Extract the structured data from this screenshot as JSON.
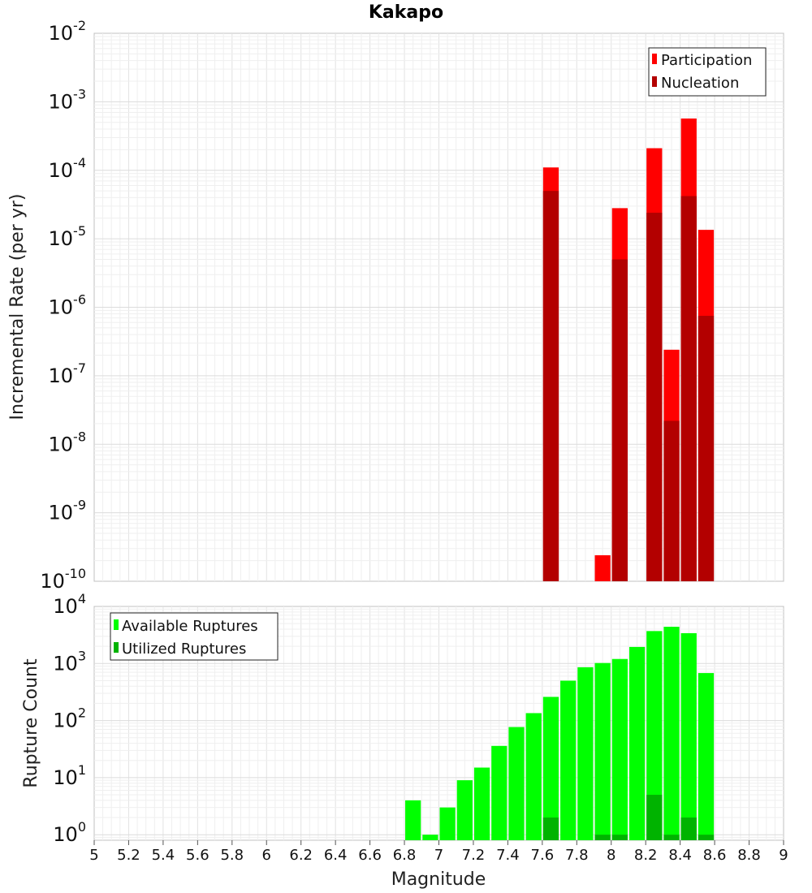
{
  "chart_data": [
    {
      "type": "bar",
      "title": "Kakapo",
      "ylabel": "Incremental Rate (per yr)",
      "xlabel": "",
      "xlim": [
        5,
        9
      ],
      "ylim": [
        1e-10,
        0.01
      ],
      "yscale": "log",
      "grid": true,
      "legend_placement": "top-right",
      "y_tick_labels": [
        {
          "base": "10",
          "exp": "-2"
        },
        {
          "base": "10",
          "exp": "-3"
        },
        {
          "base": "10",
          "exp": "-4"
        },
        {
          "base": "10",
          "exp": "-5"
        },
        {
          "base": "10",
          "exp": "-6"
        },
        {
          "base": "10",
          "exp": "-7"
        },
        {
          "base": "10",
          "exp": "-8"
        },
        {
          "base": "10",
          "exp": "-9"
        },
        {
          "base": "10",
          "exp": "-10"
        }
      ],
      "colors": {
        "Participation": "#ff0000",
        "Nucleation": "#b30000"
      },
      "series": [
        {
          "name": "Participation",
          "x": [
            7.65,
            7.95,
            8.05,
            8.25,
            8.35,
            8.45,
            8.55
          ],
          "values": [
            0.00011,
            2.4e-10,
            2.8e-05,
            0.00021,
            2.4e-07,
            0.00057,
            1.35e-05
          ]
        },
        {
          "name": "Nucleation",
          "x": [
            7.65,
            8.05,
            8.25,
            8.35,
            8.45,
            8.55
          ],
          "values": [
            5e-05,
            5e-06,
            2.4e-05,
            2.2e-08,
            4.2e-05,
            7.5e-07
          ]
        }
      ]
    },
    {
      "type": "bar",
      "title": "",
      "ylabel": "Rupture Count",
      "xlabel": "Magnitude",
      "xlim": [
        5,
        9
      ],
      "ylim": [
        0.8,
        10000
      ],
      "yscale": "log",
      "grid": true,
      "legend_placement": "top-left",
      "x_tick_labels": [
        "5",
        "5.2",
        "5.4",
        "5.6",
        "5.8",
        "6",
        "6.2",
        "6.4",
        "6.6",
        "6.8",
        "7",
        "7.2",
        "7.4",
        "7.6",
        "7.8",
        "8",
        "8.2",
        "8.4",
        "8.6",
        "8.8",
        "9"
      ],
      "y_tick_labels": [
        {
          "base": "10",
          "exp": "4"
        },
        {
          "base": "10",
          "exp": "3"
        },
        {
          "base": "10",
          "exp": "2"
        },
        {
          "base": "10",
          "exp": "1"
        },
        {
          "base": "10",
          "exp": "0"
        }
      ],
      "colors": {
        "Available Ruptures": "#00ff00",
        "Utilized Ruptures": "#00b300"
      },
      "series": [
        {
          "name": "Available Ruptures",
          "x": [
            6.85,
            6.95,
            7.05,
            7.15,
            7.25,
            7.35,
            7.45,
            7.55,
            7.65,
            7.75,
            7.85,
            7.95,
            8.05,
            8.15,
            8.25,
            8.35,
            8.45,
            8.55
          ],
          "values": [
            4,
            1,
            3,
            9,
            15,
            36,
            77,
            135,
            260,
            500,
            860,
            1020,
            1200,
            1950,
            3700,
            4400,
            3400,
            680
          ]
        },
        {
          "name": "Utilized Ruptures",
          "x": [
            7.65,
            7.95,
            8.05,
            8.25,
            8.35,
            8.45,
            8.55
          ],
          "values": [
            2,
            1,
            1,
            5,
            1,
            2,
            1
          ]
        }
      ]
    }
  ]
}
